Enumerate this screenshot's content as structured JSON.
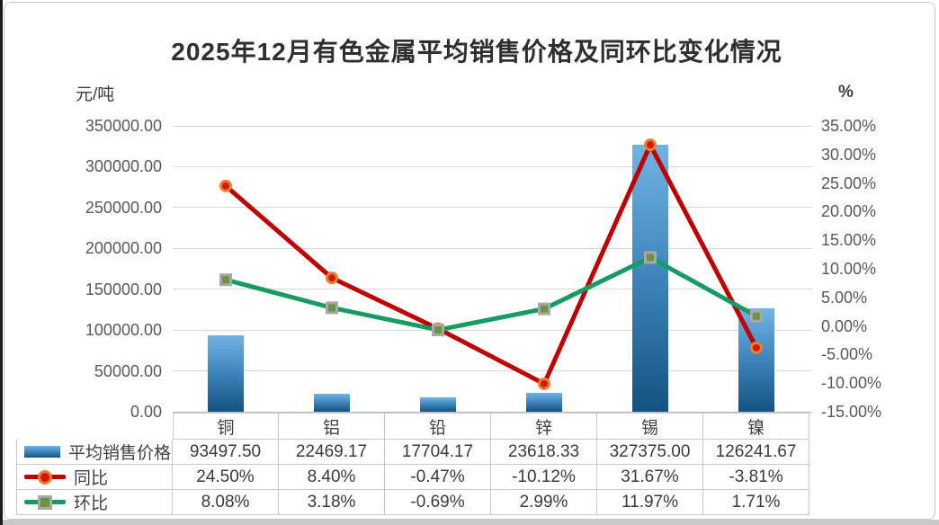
{
  "title": "2025年12月有色金属平均销售价格及同环比变化情况",
  "axes": {
    "left_unit": "元/吨",
    "right_unit": "%",
    "left_ticks": [
      "350000.00",
      "300000.00",
      "250000.00",
      "200000.00",
      "150000.00",
      "100000.00",
      "50000.00",
      "0.00"
    ],
    "right_ticks": [
      "35.00%",
      "30.00%",
      "25.00%",
      "20.00%",
      "15.00%",
      "10.00%",
      "5.00%",
      "0.00%",
      "-5.00%",
      "-10.00%",
      "-15.00%"
    ]
  },
  "chart_data": {
    "type": "combo",
    "title": "2025年12月有色金属平均销售价格及同环比变化情况",
    "categories": [
      "铜",
      "铝",
      "铅",
      "锌",
      "锡",
      "镍"
    ],
    "series": [
      {
        "name": "平均销售价格",
        "type": "bar",
        "axis": "left",
        "values": [
          93497.5,
          22469.17,
          17704.17,
          23618.33,
          327375.0,
          126241.67
        ],
        "color_top": "#71B3E4",
        "color_bottom": "#135381"
      },
      {
        "name": "同比",
        "type": "line",
        "axis": "right",
        "marker": "circle",
        "values": [
          24.5,
          8.4,
          -0.47,
          -10.12,
          31.67,
          -3.81
        ],
        "color": "#C00000",
        "marker_fill": "#CB1C0C",
        "marker_border": "#ED7D31"
      },
      {
        "name": "环比",
        "type": "line",
        "axis": "right",
        "marker": "square",
        "values": [
          8.08,
          3.18,
          -0.69,
          2.99,
          11.97,
          1.71
        ],
        "color": "#169B62",
        "marker_fill": "#6B9440",
        "marker_border": "#A8A8A8"
      }
    ],
    "left_axis": {
      "unit": "元/吨",
      "min": 0,
      "max": 350000,
      "step": 50000
    },
    "right_axis": {
      "unit": "%",
      "min": -15,
      "max": 35,
      "step": 5
    },
    "grid": true,
    "legend_position": "data-table-left"
  },
  "table": {
    "rows": [
      {
        "label": "平均销售价格",
        "values": [
          "93497.50",
          "22469.17",
          "17704.17",
          "23618.33",
          "327375.00",
          "126241.67"
        ]
      },
      {
        "label": "同比",
        "values": [
          "24.50%",
          "8.40%",
          "-0.47%",
          "-10.12%",
          "31.67%",
          "-3.81%"
        ]
      },
      {
        "label": "环比",
        "values": [
          "8.08%",
          "3.18%",
          "-0.69%",
          "2.99%",
          "11.97%",
          "1.71%"
        ]
      }
    ]
  }
}
